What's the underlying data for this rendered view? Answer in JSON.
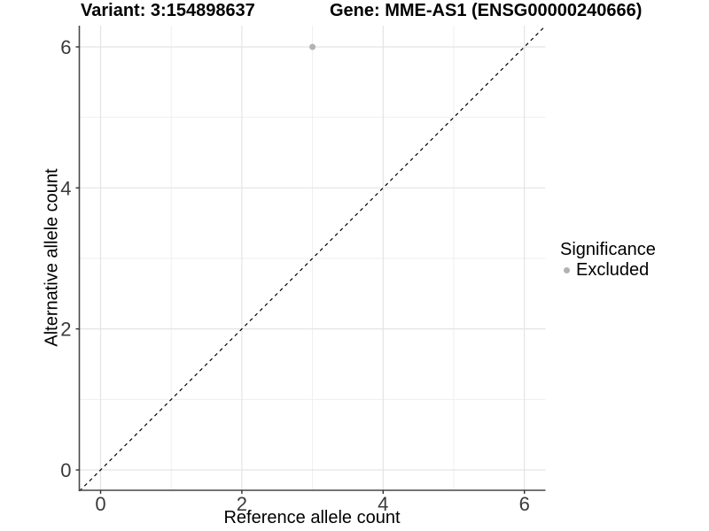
{
  "chart_data": {
    "type": "scatter",
    "title_variant": "Variant: 3:154898637",
    "title_gene": "Gene: MME-AS1 (ENSG00000240666)",
    "xlabel": "Reference allele count",
    "ylabel": "Alternative allele count",
    "xlim": [
      -0.3,
      6.3
    ],
    "ylim": [
      -0.3,
      6.3
    ],
    "xticks": [
      0,
      2,
      4,
      6
    ],
    "yticks": [
      0,
      2,
      4,
      6
    ],
    "grid": {
      "major": [
        0,
        2,
        4,
        6
      ],
      "minor": [
        1,
        3,
        5
      ]
    },
    "points": [
      {
        "x": 3,
        "y": 6,
        "series": "Excluded"
      }
    ],
    "identity_line": {
      "style": "dashed",
      "from": -0.3,
      "to": 6.3
    },
    "legend": {
      "title": "Significance",
      "position": "right",
      "items": [
        {
          "label": "Excluded",
          "color": "#b2b2b2"
        }
      ]
    },
    "colors": {
      "point": "#b2b2b2",
      "grid_major": "#e4e4e4",
      "grid_minor": "#efefef",
      "axis_line": "#474747",
      "tick_mark": "#333333",
      "tick_label": "#3a3a3a",
      "dashed_line": "#000000",
      "background": "#ffffff"
    }
  }
}
